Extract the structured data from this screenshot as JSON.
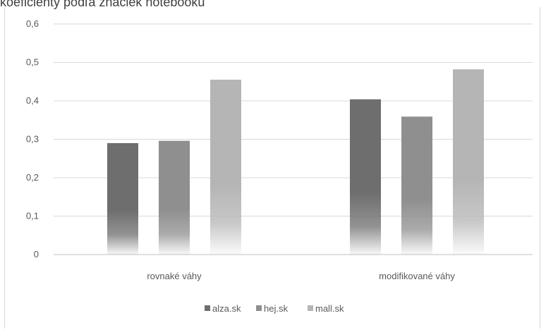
{
  "chart_data": {
    "type": "bar",
    "title": "koeficienty podľa značiek notebooku",
    "categories": [
      "rovnaké váhy",
      "modifikované váhy"
    ],
    "series": [
      {
        "name": "alza.sk",
        "values": [
          0.29,
          0.404
        ],
        "color": "#6e6e6e"
      },
      {
        "name": "hej.sk",
        "values": [
          0.296,
          0.359
        ],
        "color": "#8f8f8f"
      },
      {
        "name": "mall.sk",
        "values": [
          0.455,
          0.482
        ],
        "color": "#b5b5b5"
      }
    ],
    "yticks": [
      "0",
      "0,1",
      "0,2",
      "0,3",
      "0,4",
      "0,5",
      "0,6"
    ],
    "ylim": [
      0,
      0.6
    ],
    "grid": true,
    "legend": "bottom"
  }
}
